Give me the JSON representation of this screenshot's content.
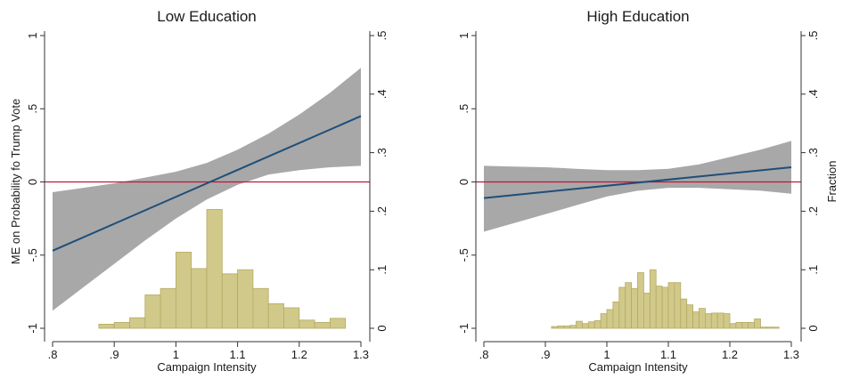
{
  "colors": {
    "ci_band": "#a8a8a8",
    "fit_line": "#1f4e79",
    "zero_line": "#c0143c",
    "hist_fill": "#d1c98a",
    "hist_edge": "#b3aa62",
    "axis": "#333333"
  },
  "chart_data": [
    {
      "type": "line",
      "title": "Low Education",
      "xlabel": "Campaign Intensity",
      "ylabel": "ME on Probability fo Trump Vote",
      "y2label": "",
      "xlim": [
        0.8,
        1.3
      ],
      "ylim": [
        -1,
        1
      ],
      "y2lim": [
        0,
        0.5
      ],
      "x_ticks": [
        0.8,
        0.9,
        1.0,
        1.1,
        1.2,
        1.3
      ],
      "x_tick_labels": [
        ".8",
        ".9",
        "1",
        "1.1",
        "1.2",
        "1.3"
      ],
      "y_ticks": [
        -1,
        -0.5,
        0,
        0.5,
        1
      ],
      "y_tick_labels": [
        "-1",
        "-.5",
        "0",
        ".5",
        "1"
      ],
      "y2_ticks": [
        0,
        0.1,
        0.2,
        0.3,
        0.4,
        0.5
      ],
      "y2_tick_labels": [
        "0",
        ".1",
        ".2",
        ".3",
        ".4",
        ".5"
      ],
      "reference_line_y": 0,
      "grid": false,
      "fit_line": {
        "x": [
          0.8,
          1.3
        ],
        "y": [
          -0.47,
          0.45
        ]
      },
      "ci_band": {
        "x": [
          0.8,
          0.85,
          0.9,
          0.95,
          1.0,
          1.05,
          1.1,
          1.15,
          1.2,
          1.25,
          1.3
        ],
        "lower": [
          -0.88,
          -0.72,
          -0.56,
          -0.4,
          -0.25,
          -0.12,
          -0.02,
          0.05,
          0.08,
          0.1,
          0.11
        ],
        "upper": [
          -0.07,
          -0.04,
          -0.01,
          0.03,
          0.07,
          0.13,
          0.22,
          0.33,
          0.46,
          0.61,
          0.78
        ]
      },
      "histogram": {
        "bin_width": 0.025,
        "bin_starts": [
          0.875,
          0.9,
          0.925,
          0.95,
          0.975,
          1.0,
          1.025,
          1.05,
          1.075,
          1.1,
          1.125,
          1.15,
          1.175,
          1.2,
          1.225,
          1.25
        ],
        "fractions": [
          0.007,
          0.01,
          0.018,
          0.057,
          0.068,
          0.13,
          0.102,
          0.203,
          0.093,
          0.1,
          0.068,
          0.042,
          0.035,
          0.014,
          0.01,
          0.017
        ]
      }
    },
    {
      "type": "line",
      "title": "High Education",
      "xlabel": "Campaign Intensity",
      "ylabel": "",
      "y2label": "Fraction",
      "xlim": [
        0.8,
        1.3
      ],
      "ylim": [
        -1,
        1
      ],
      "y2lim": [
        0,
        0.5
      ],
      "x_ticks": [
        0.8,
        0.9,
        1.0,
        1.1,
        1.2,
        1.3
      ],
      "x_tick_labels": [
        ".8",
        ".9",
        "1",
        "1.1",
        "1.2",
        "1.3"
      ],
      "y_ticks": [
        -1,
        -0.5,
        0,
        0.5,
        1
      ],
      "y_tick_labels": [
        "-1",
        "-.5",
        "0",
        ".5",
        "1"
      ],
      "y2_ticks": [
        0,
        0.1,
        0.2,
        0.3,
        0.4,
        0.5
      ],
      "y2_tick_labels": [
        "0",
        ".1",
        ".2",
        ".3",
        ".4",
        ".5"
      ],
      "reference_line_y": 0,
      "grid": false,
      "fit_line": {
        "x": [
          0.8,
          1.3
        ],
        "y": [
          -0.11,
          0.1
        ]
      },
      "ci_band": {
        "x": [
          0.8,
          0.85,
          0.9,
          0.95,
          1.0,
          1.05,
          1.1,
          1.15,
          1.2,
          1.25,
          1.3
        ],
        "lower": [
          -0.34,
          -0.28,
          -0.22,
          -0.16,
          -0.1,
          -0.06,
          -0.04,
          -0.04,
          -0.05,
          -0.06,
          -0.08
        ],
        "upper": [
          0.11,
          0.105,
          0.1,
          0.09,
          0.08,
          0.08,
          0.09,
          0.12,
          0.17,
          0.22,
          0.28
        ]
      },
      "histogram": {
        "bin_width": 0.01,
        "bin_starts": [
          0.91,
          0.92,
          0.93,
          0.94,
          0.95,
          0.96,
          0.97,
          0.98,
          0.99,
          1.0,
          1.01,
          1.02,
          1.03,
          1.04,
          1.05,
          1.06,
          1.07,
          1.08,
          1.09,
          1.1,
          1.11,
          1.12,
          1.13,
          1.14,
          1.15,
          1.16,
          1.17,
          1.18,
          1.19,
          1.2,
          1.21,
          1.22,
          1.23,
          1.24,
          1.25,
          1.26,
          1.27
        ],
        "fractions": [
          0.003,
          0.004,
          0.004,
          0.005,
          0.012,
          0.008,
          0.011,
          0.013,
          0.025,
          0.032,
          0.045,
          0.07,
          0.078,
          0.068,
          0.095,
          0.06,
          0.1,
          0.072,
          0.07,
          0.078,
          0.078,
          0.05,
          0.04,
          0.028,
          0.034,
          0.025,
          0.026,
          0.026,
          0.025,
          0.008,
          0.01,
          0.01,
          0.01,
          0.016,
          0.002,
          0.002,
          0.002
        ]
      }
    }
  ]
}
